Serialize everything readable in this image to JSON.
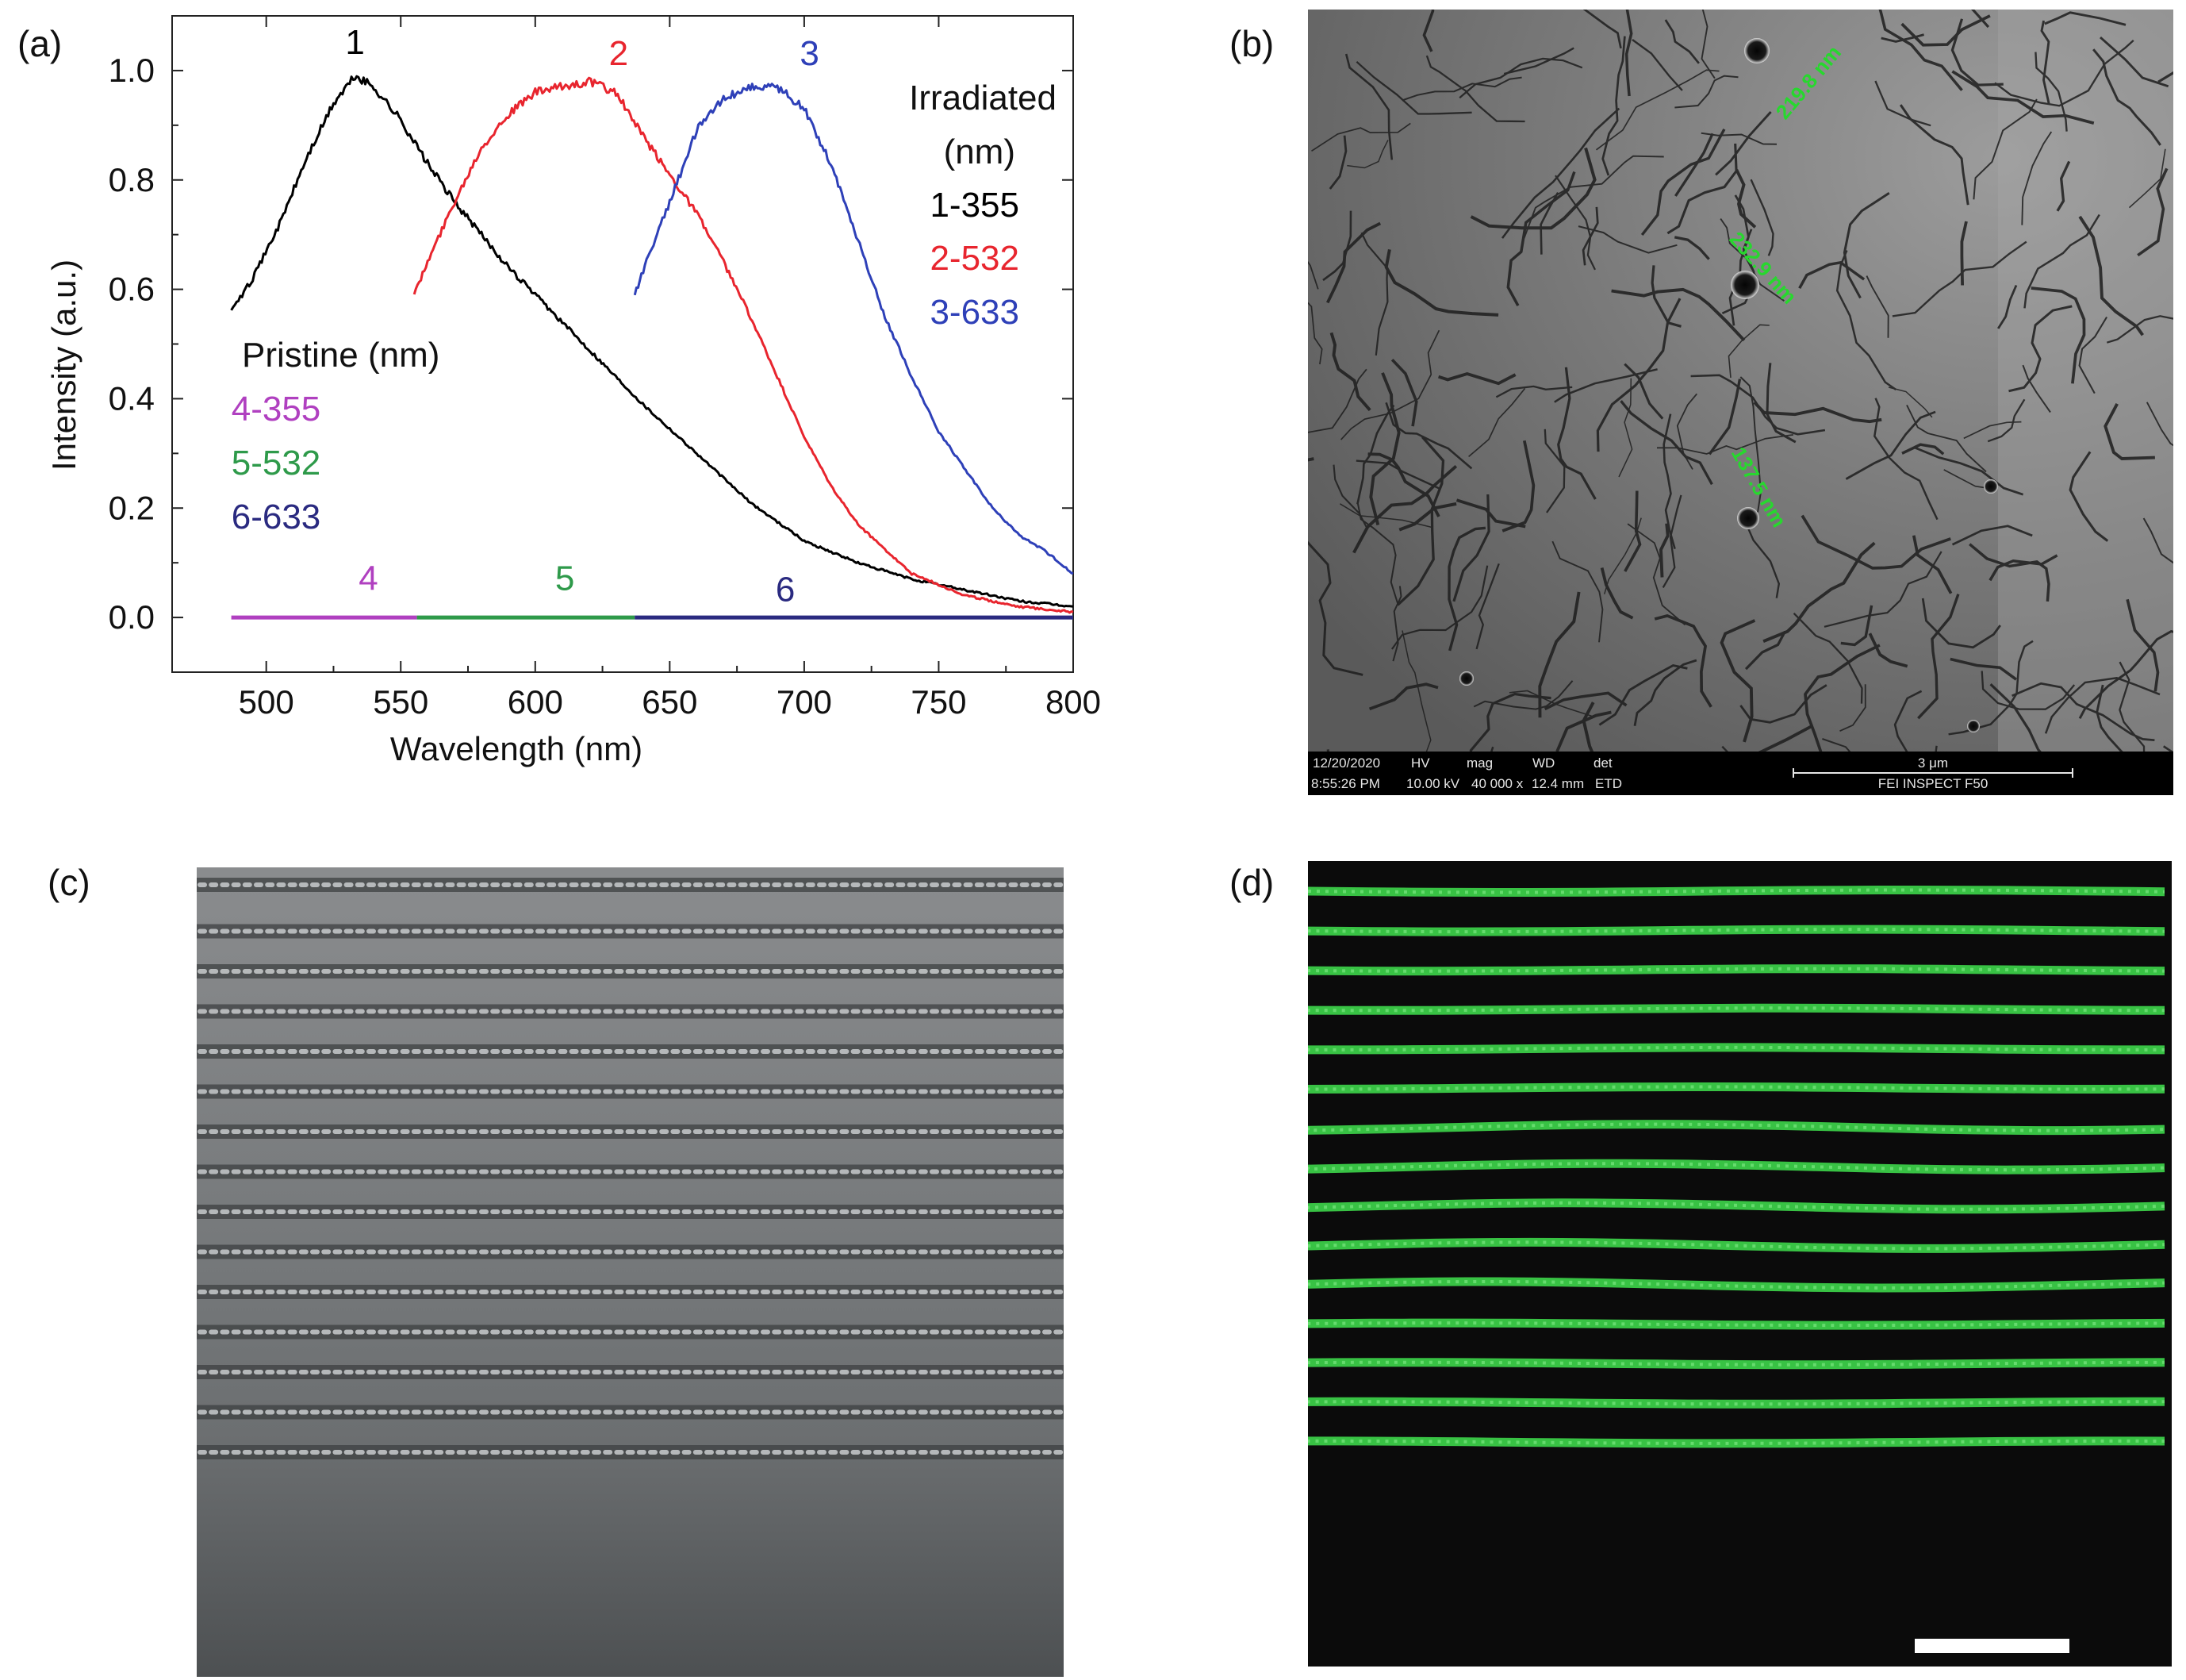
{
  "panels": {
    "a": "(a)",
    "b": "(b)",
    "c": "(c)",
    "d": "(d)"
  },
  "chart_data": {
    "type": "line",
    "xlabel": "Wavelength (nm)",
    "ylabel": "Intensity (a.u.)",
    "xlim": [
      465,
      800
    ],
    "ylim": [
      -0.1,
      1.1
    ],
    "xticks": [
      500,
      550,
      600,
      650,
      700,
      750,
      800
    ],
    "yticks": [
      0.0,
      0.2,
      0.4,
      0.6,
      0.8,
      1.0
    ],
    "grid": false,
    "legend_irradiated": {
      "title_line1": "Irradiated",
      "title_line2": "(nm)",
      "entries": [
        "1-355",
        "2-532",
        "3-633"
      ]
    },
    "legend_pristine": {
      "title": "Pristine (nm)",
      "entries": [
        "4-355",
        "5-532",
        "6-633"
      ]
    },
    "series": [
      {
        "name": "1",
        "color": "#000000",
        "x": [
          487,
          495,
          505,
          515,
          525,
          533,
          540,
          550,
          560,
          570,
          580,
          590,
          600,
          620,
          640,
          660,
          680,
          700,
          720,
          740,
          760,
          780,
          800
        ],
        "y": [
          0.56,
          0.62,
          0.72,
          0.84,
          0.94,
          0.99,
          0.97,
          0.91,
          0.83,
          0.76,
          0.7,
          0.64,
          0.59,
          0.49,
          0.39,
          0.3,
          0.21,
          0.14,
          0.1,
          0.07,
          0.05,
          0.03,
          0.02
        ]
      },
      {
        "name": "2",
        "color": "#e8252e",
        "x": [
          555,
          560,
          570,
          580,
          590,
          600,
          610,
          620,
          630,
          640,
          650,
          660,
          670,
          680,
          690,
          700,
          710,
          720,
          740,
          760,
          780,
          800
        ],
        "y": [
          0.59,
          0.65,
          0.76,
          0.86,
          0.92,
          0.96,
          0.97,
          0.98,
          0.96,
          0.88,
          0.81,
          0.74,
          0.65,
          0.55,
          0.44,
          0.33,
          0.24,
          0.17,
          0.08,
          0.04,
          0.02,
          0.01
        ]
      },
      {
        "name": "3",
        "color": "#2e40b8",
        "x": [
          637,
          642,
          650,
          660,
          670,
          680,
          690,
          700,
          710,
          720,
          730,
          740,
          750,
          760,
          770,
          780,
          790,
          800
        ],
        "y": [
          0.59,
          0.66,
          0.76,
          0.89,
          0.95,
          0.97,
          0.97,
          0.93,
          0.83,
          0.69,
          0.55,
          0.44,
          0.34,
          0.27,
          0.2,
          0.15,
          0.12,
          0.08
        ]
      },
      {
        "name": "4",
        "color": "#b040c0",
        "x": [
          487,
          556
        ],
        "y": [
          0.0,
          0.0
        ]
      },
      {
        "name": "5",
        "color": "#2e9a4a",
        "x": [
          556,
          637
        ],
        "y": [
          0.0,
          0.0
        ]
      },
      {
        "name": "6",
        "color": "#2a2a80",
        "x": [
          637,
          800
        ],
        "y": [
          0.0,
          0.0
        ]
      }
    ],
    "curve_labels": [
      {
        "text": "1",
        "x": 533,
        "y": 1.03
      },
      {
        "text": "2",
        "x": 631,
        "y": 1.01
      },
      {
        "text": "3",
        "x": 702,
        "y": 1.01
      },
      {
        "text": "4",
        "x": 538,
        "y": 0.05
      },
      {
        "text": "5",
        "x": 611,
        "y": 0.05
      },
      {
        "text": "6",
        "x": 693,
        "y": 0.03
      }
    ]
  },
  "sem": {
    "measurements": [
      "219.8 nm",
      "232.9 nm",
      "137.5 nm"
    ],
    "info_bar": {
      "date": "12/20/2020",
      "time": "8:55:26 PM",
      "hv_label": "HV",
      "hv_value": "10.00 kV",
      "mag_label": "mag",
      "mag_value": "40 000 x",
      "wd_label": "WD",
      "wd_value": "12.4 mm",
      "det_label": "det",
      "det_value": "ETD",
      "scale": "3 μm",
      "instrument": "FEI INSPECT F50"
    }
  },
  "colors": {
    "sem_bg": "#6f6f6f",
    "optical_bg": "#6b6e70",
    "fluor_bg": "#0b0b0b",
    "fluor_line": "#3dd64a",
    "label_green": "#27d82e"
  }
}
